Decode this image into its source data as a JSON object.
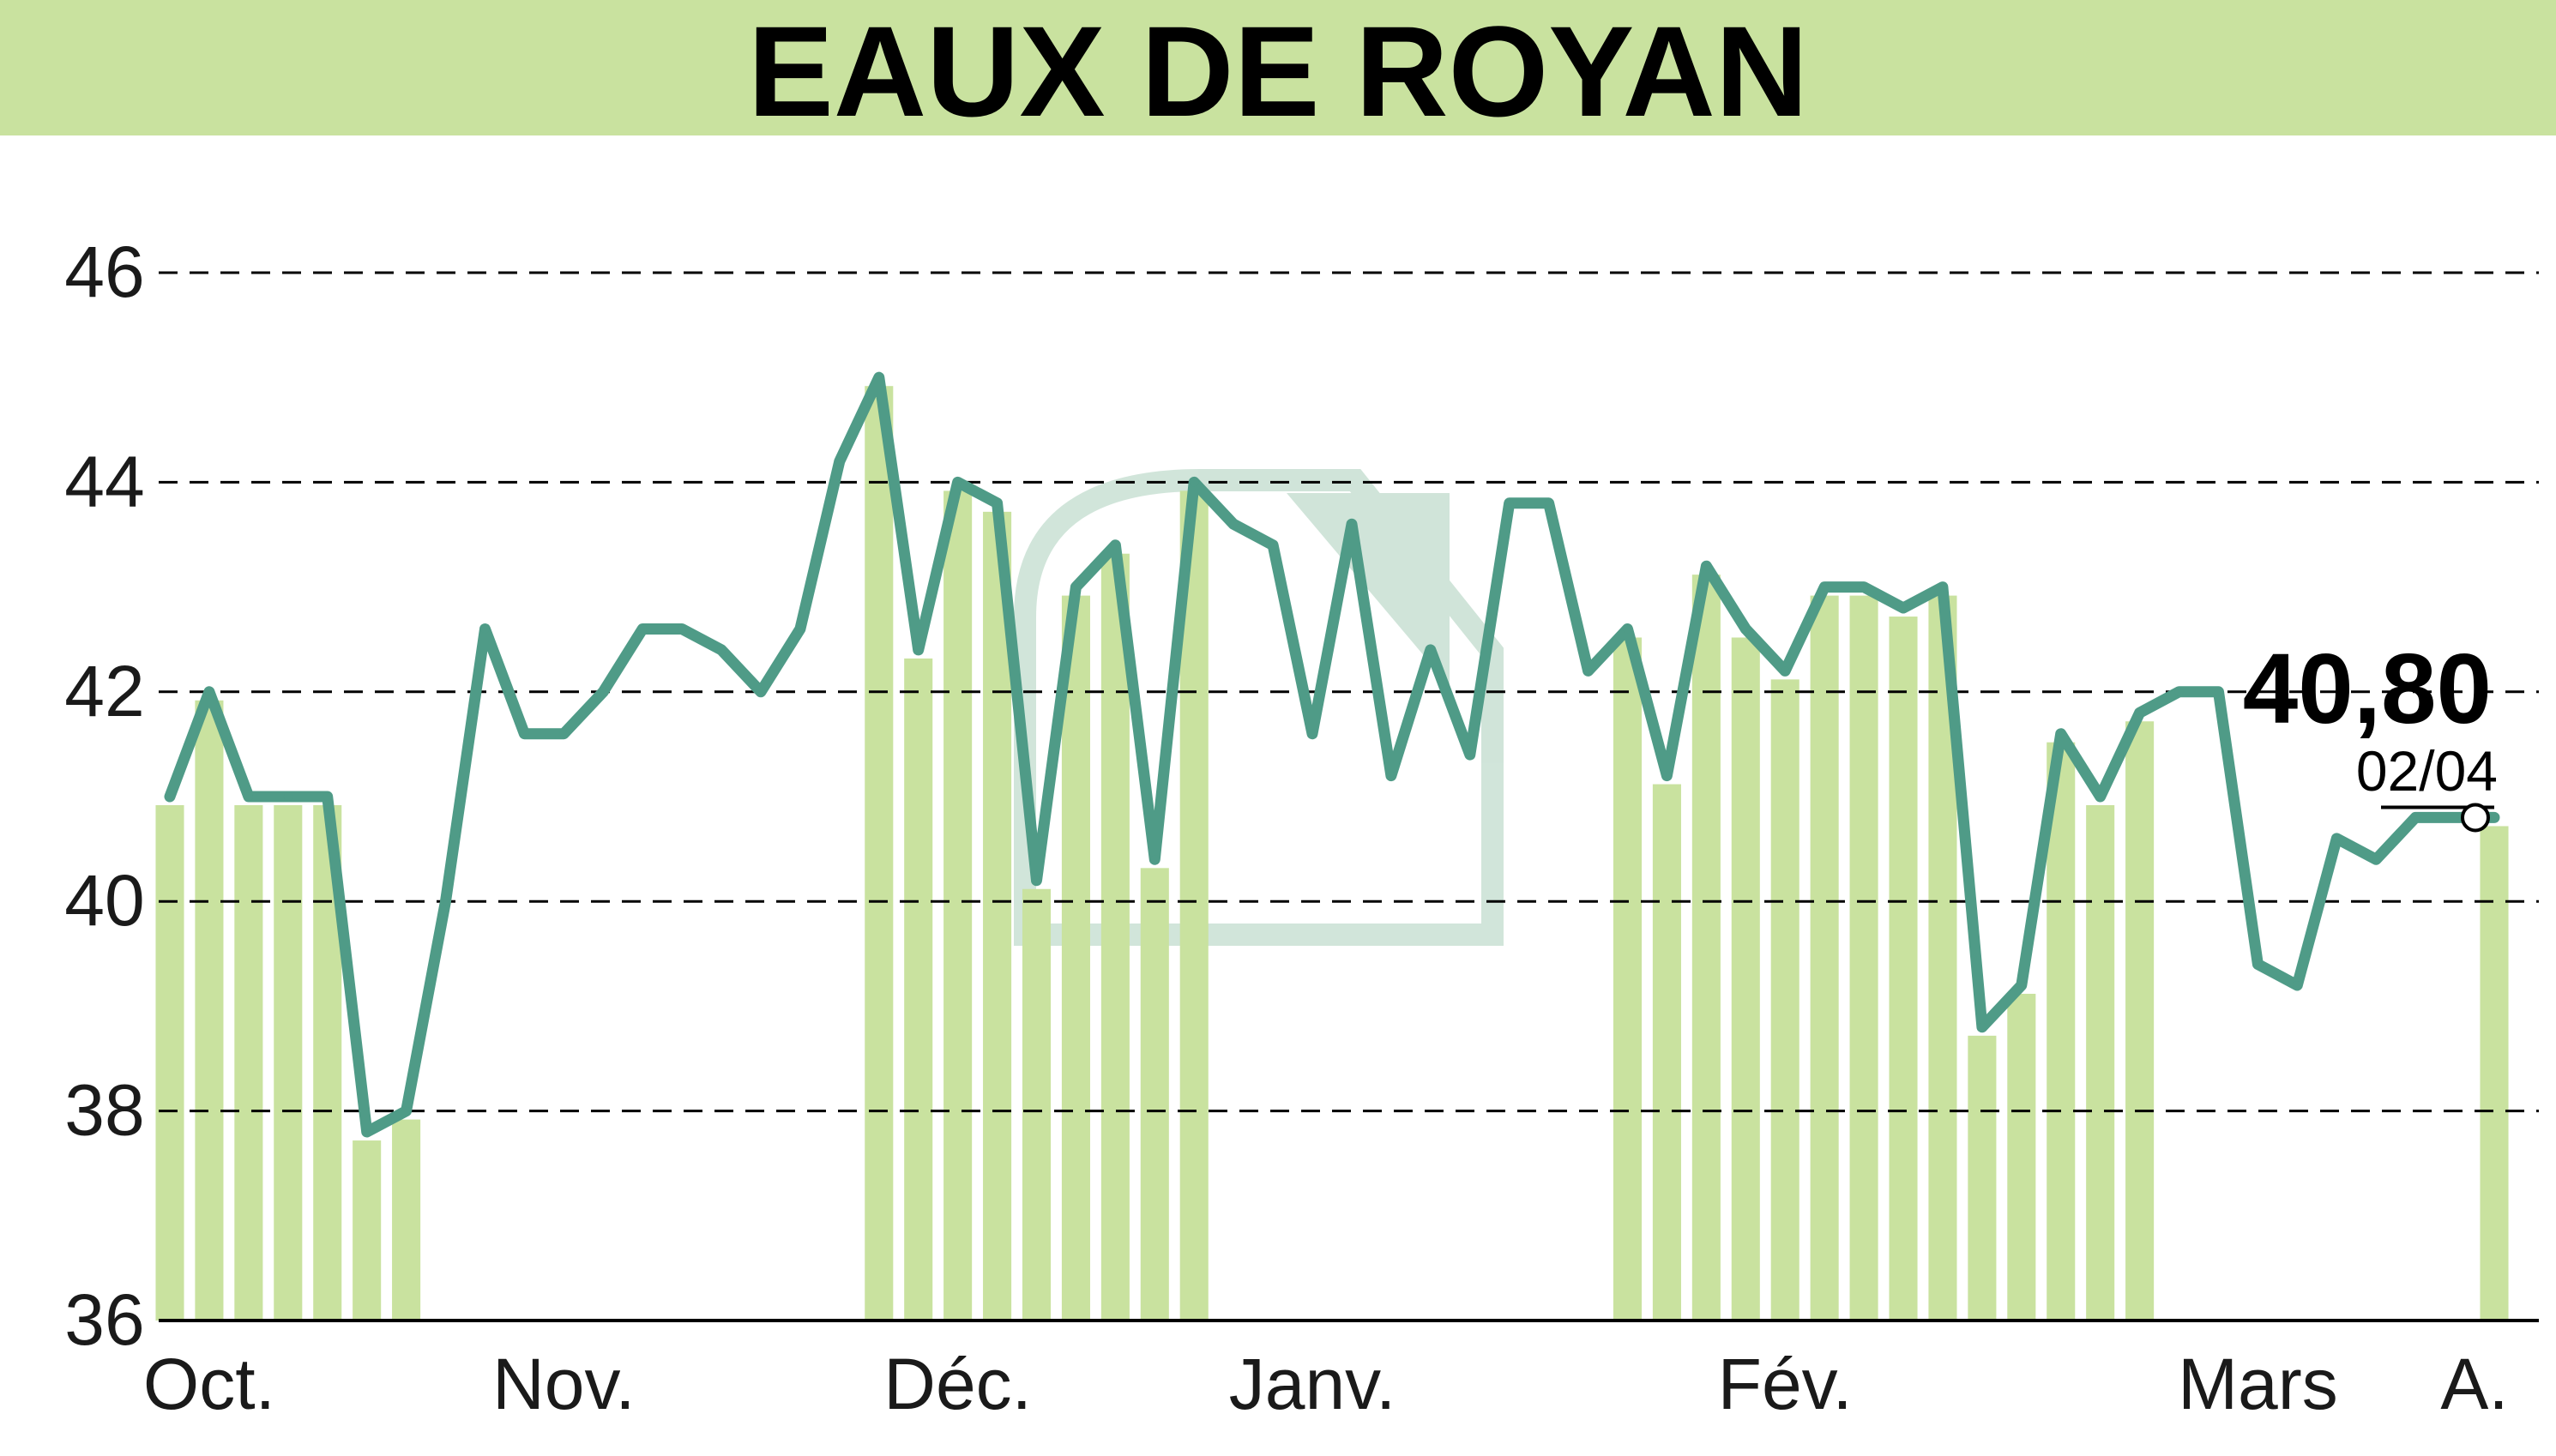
{
  "chart_data": {
    "type": "line",
    "title": "EAUX DE ROYAN",
    "xlabel": "",
    "ylabel": "",
    "ylim": [
      36,
      46
    ],
    "yticks": [
      36,
      38,
      40,
      42,
      44,
      46
    ],
    "ytick_labels": [
      "36",
      "38",
      "40",
      "42",
      "44",
      "46"
    ],
    "grid": true,
    "month_labels": [
      "Oct.",
      "Nov.",
      "Déc.",
      "Janv.",
      "Fév.",
      "Mars",
      "A."
    ],
    "month_label_indices": [
      1,
      10,
      20,
      29,
      41,
      53,
      58.5
    ],
    "series": [
      {
        "values": [
          41.0,
          42.0,
          41.0,
          41.0,
          41.0,
          37.8,
          38.0,
          40.0,
          42.6,
          41.6,
          41.6,
          42.0,
          42.6,
          42.6,
          42.4,
          42.0,
          42.6,
          44.2,
          45.0,
          42.4,
          44.0,
          43.8,
          40.2,
          43.0,
          43.4,
          40.4,
          44.0,
          43.6,
          43.4,
          41.6,
          43.6,
          41.2,
          42.4,
          41.4,
          43.8,
          43.8,
          42.2,
          42.6,
          41.2,
          43.2,
          42.6,
          42.2,
          43.0,
          43.0,
          42.8,
          43.0,
          38.8,
          39.2,
          41.6,
          41.0,
          41.8,
          42.0,
          42.0,
          39.4,
          39.2,
          40.6,
          40.4,
          40.8,
          40.8,
          40.8
        ]
      }
    ],
    "volume_bar_indices": [
      0,
      1,
      2,
      3,
      4,
      5,
      6,
      18,
      19,
      20,
      21,
      22,
      23,
      24,
      25,
      26,
      37,
      38,
      39,
      40,
      41,
      42,
      43,
      44,
      45,
      46,
      47,
      48,
      49,
      50,
      59
    ],
    "last_value_label": "40,80",
    "last_date_label": "02/04",
    "colors": {
      "title_band": "#c9e29f",
      "line": "#4f9b87",
      "bars": "#c9e29f",
      "grid": "#000000",
      "text": "#000000"
    }
  }
}
